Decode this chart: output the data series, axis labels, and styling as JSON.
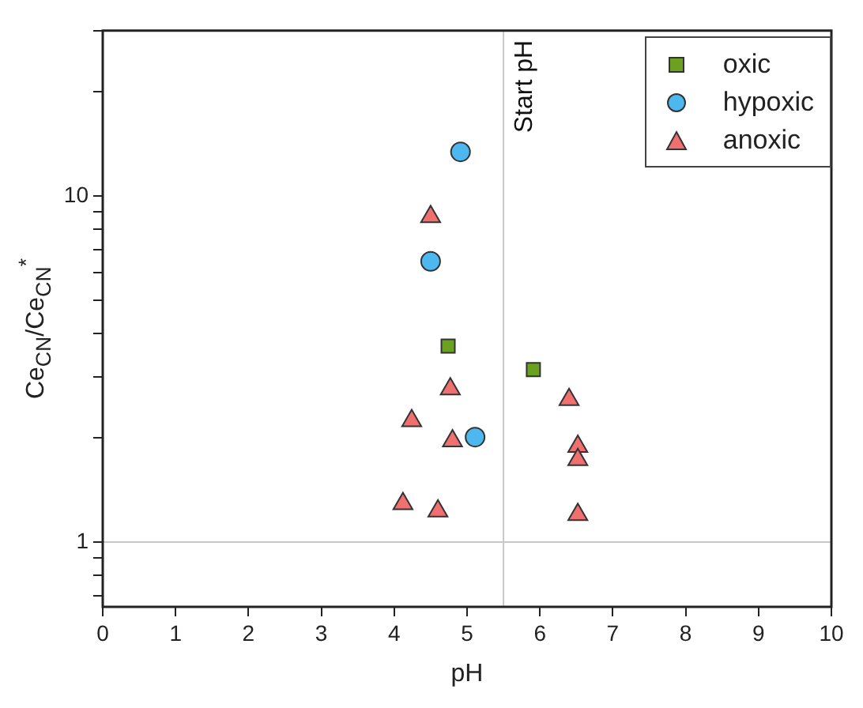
{
  "chart_data": {
    "type": "scatter",
    "xlabel": "pH",
    "ylabel": "Ce$_{CN}$/Ce$_{CN}$$^{*}$",
    "log": "y",
    "xlim": [
      0,
      10
    ],
    "xticks": [
      0,
      1,
      2,
      3,
      4,
      5,
      6,
      7,
      8,
      9,
      10
    ],
    "ylim": [
      0.65,
      30
    ],
    "yticks": [
      {
        "value": 0.7,
        "label": null
      },
      {
        "value": 0.8,
        "label": null
      },
      {
        "value": 0.9,
        "label": null
      },
      1,
      {
        "value": 2,
        "label": null
      },
      {
        "value": 3,
        "label": null
      },
      {
        "value": 4,
        "label": null
      },
      {
        "value": 5,
        "label": null
      },
      {
        "value": 6,
        "label": null
      },
      {
        "value": 7,
        "label": null
      },
      {
        "value": 8,
        "label": null
      },
      {
        "value": 9,
        "label": null
      },
      10,
      {
        "value": 20,
        "label": null
      },
      {
        "value": 30,
        "label": null
      }
    ],
    "grid": false,
    "legend": "top right",
    "ref_lines": [
      {
        "axis": "x",
        "value": 5.5,
        "label": "Start pH",
        "color": "#c8c8c8"
      },
      {
        "axis": "y",
        "value": 1,
        "color": "#c8c8c8"
      }
    ],
    "series": [
      {
        "name": "oxic",
        "color": "#6aa121",
        "marker": "square",
        "x": [
          4.74,
          5.91
        ],
        "values": [
          3.68,
          3.15
        ]
      },
      {
        "name": "hypoxic",
        "color": "#4db8f0",
        "marker": "circle",
        "x": [
          4.91,
          4.5,
          5.11
        ],
        "values": [
          13.4,
          6.47,
          2.01
        ]
      },
      {
        "name": "anoxic",
        "color": "#f07070",
        "marker": "triangle",
        "x": [
          4.5,
          4.77,
          4.24,
          4.8,
          4.12,
          4.6,
          6.4,
          6.52,
          6.52,
          6.52
        ],
        "values": [
          8.7,
          2.77,
          2.24,
          1.96,
          1.29,
          1.23,
          2.58,
          1.89,
          1.73,
          1.2
        ]
      }
    ]
  }
}
